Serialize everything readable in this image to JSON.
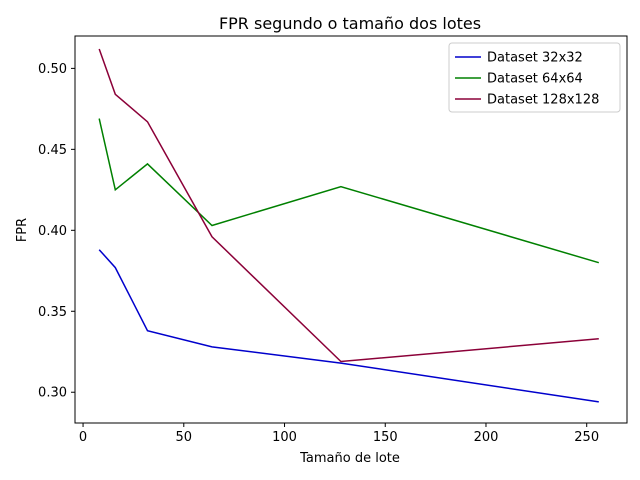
{
  "chart_data": {
    "type": "line",
    "title": "FPR segundo o tamaño dos lotes",
    "xlabel": "Tamaño de lote",
    "ylabel": "FPR",
    "xlim": [
      -4,
      270
    ],
    "ylim": [
      0.281,
      0.52
    ],
    "xticks": [
      0,
      50,
      100,
      150,
      200,
      250
    ],
    "yticks": [
      0.3,
      0.35,
      0.4,
      0.45,
      0.5
    ],
    "grid": false,
    "legend_position": "top-right",
    "series": [
      {
        "name": "Dataset 32x32",
        "color": "#0000cc",
        "x": [
          8,
          16,
          32,
          64,
          128,
          256
        ],
        "y": [
          0.388,
          0.377,
          0.338,
          0.328,
          0.318,
          0.294
        ]
      },
      {
        "name": "Dataset 64x64",
        "color": "#008000",
        "x": [
          8,
          16,
          32,
          64,
          128,
          256
        ],
        "y": [
          0.469,
          0.425,
          0.441,
          0.403,
          0.427,
          0.38
        ]
      },
      {
        "name": "Dataset 128x128",
        "color": "#8b0038",
        "x": [
          8,
          16,
          32,
          64,
          128,
          256
        ],
        "y": [
          0.512,
          0.484,
          0.467,
          0.396,
          0.319,
          0.333
        ]
      }
    ]
  }
}
